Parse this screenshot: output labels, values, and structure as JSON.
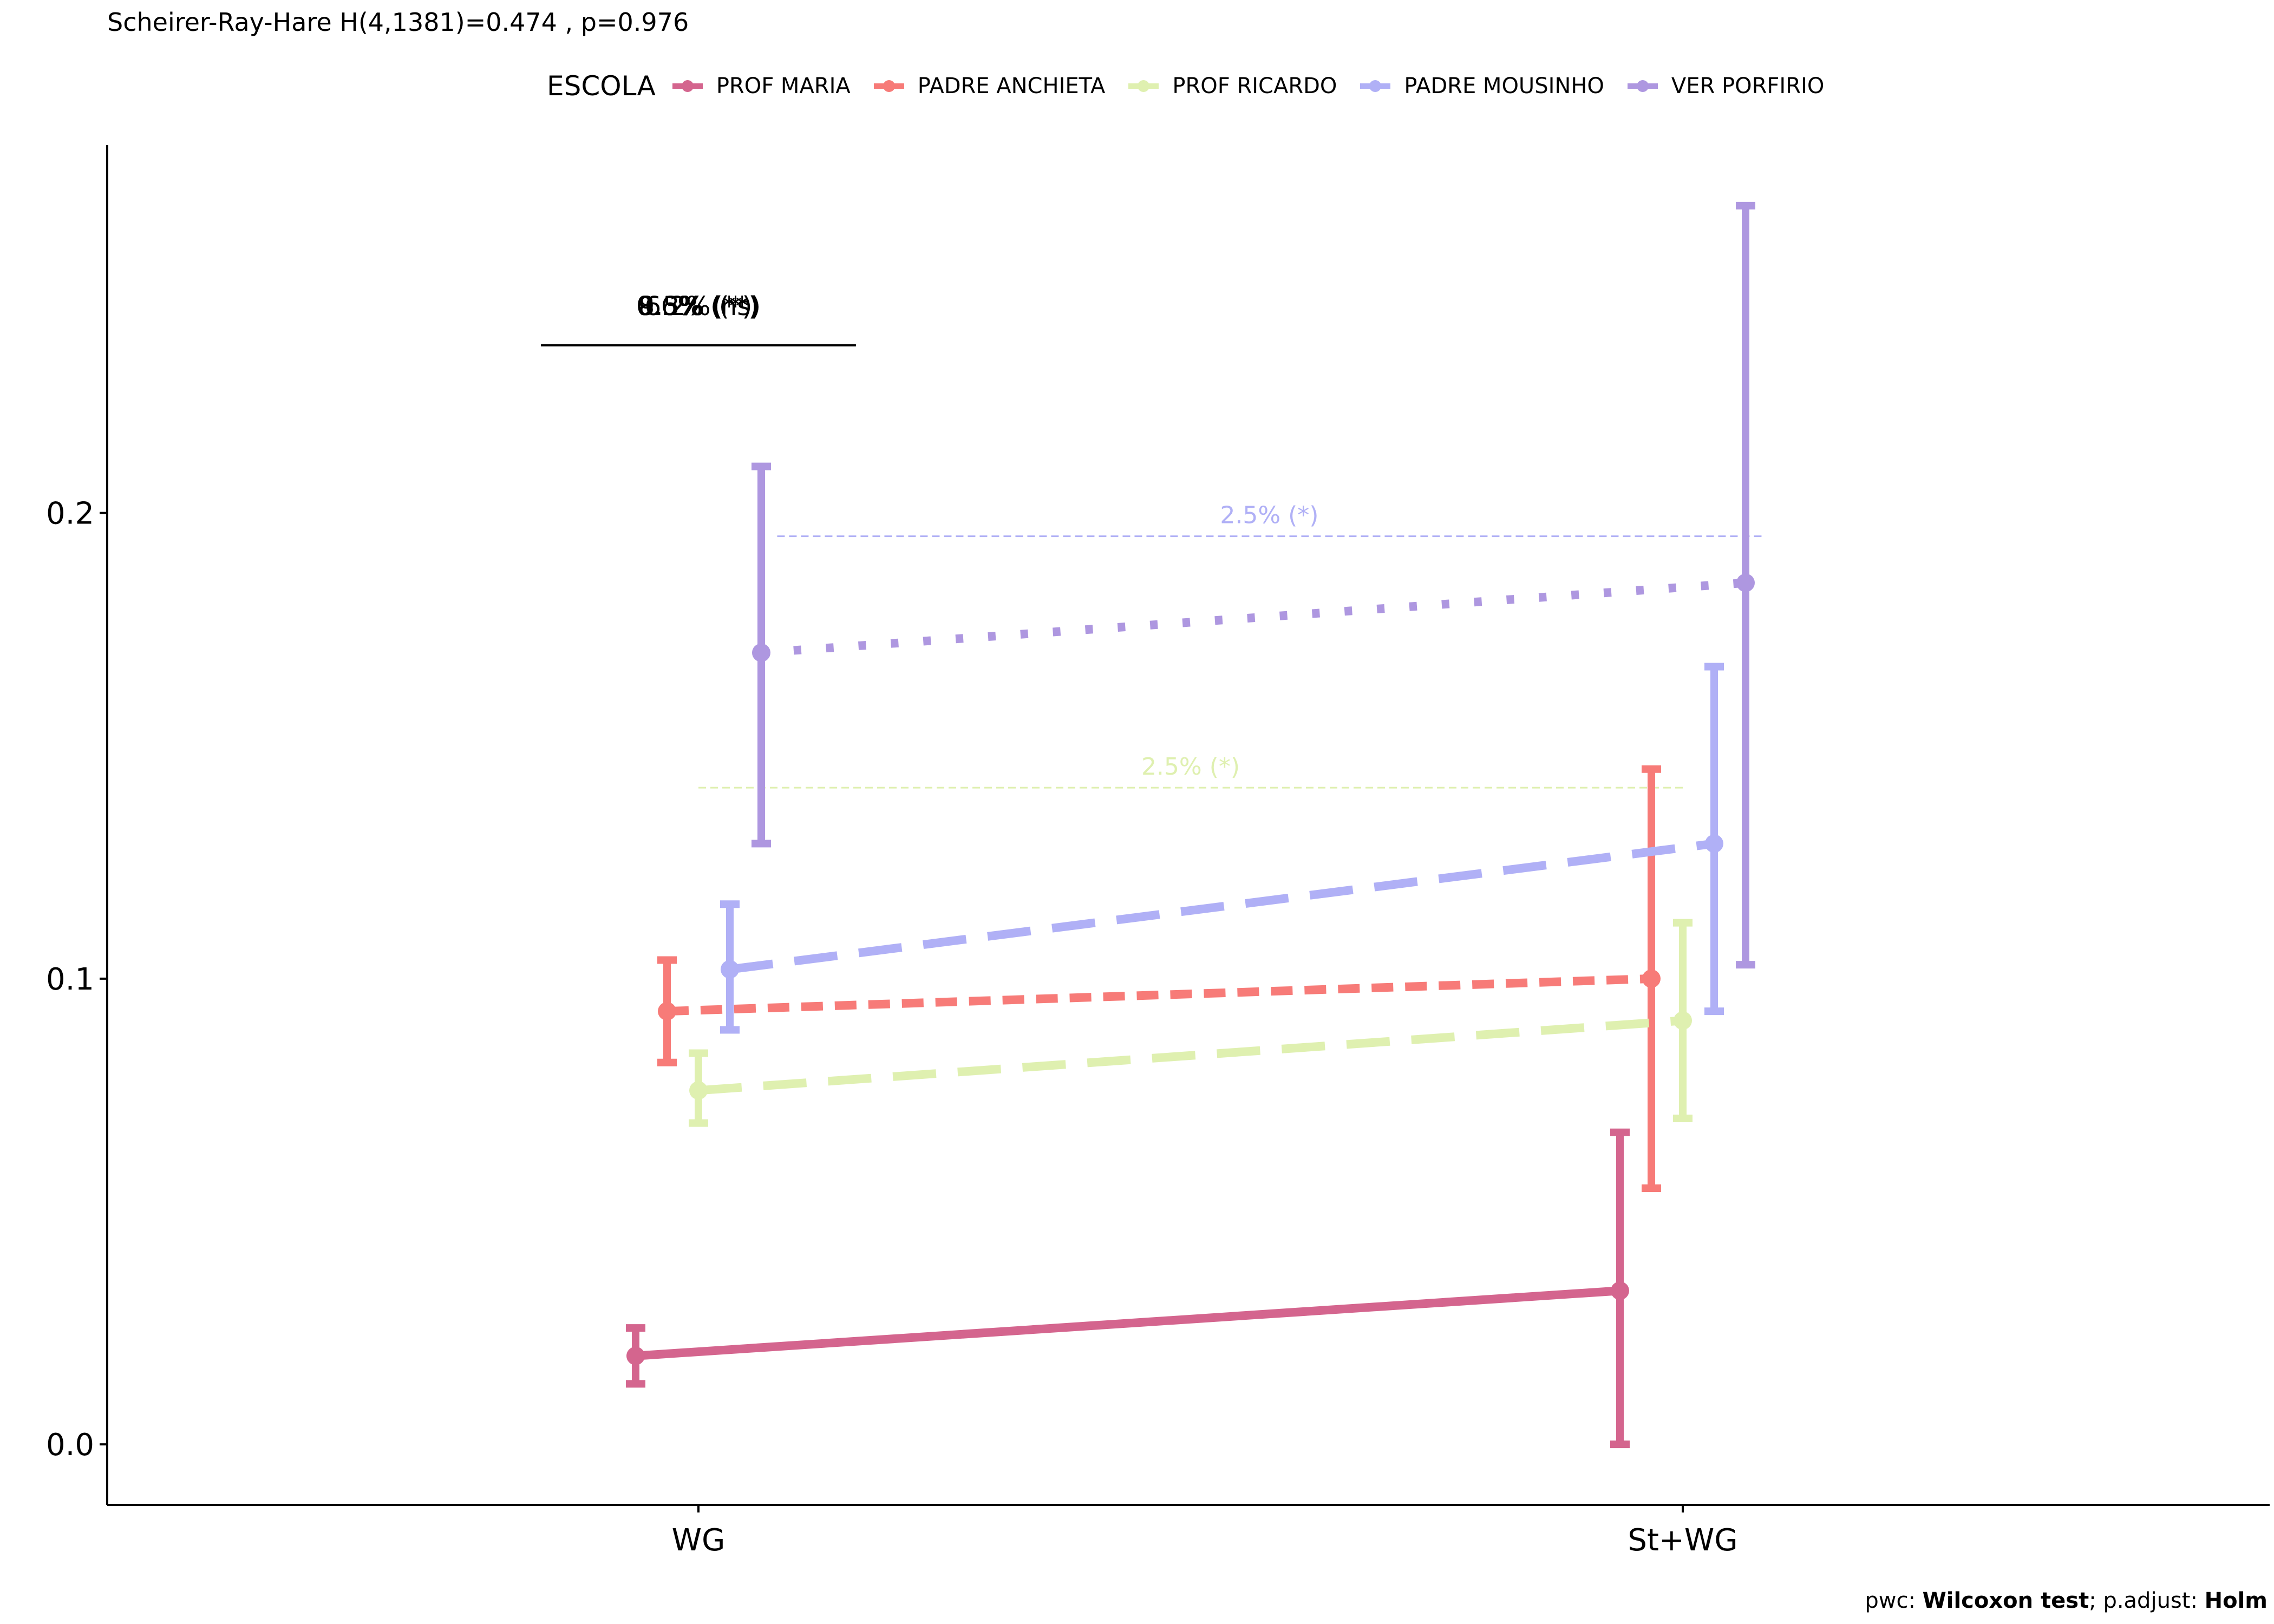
{
  "subtitle": "Scheirer-Ray-Hare H(4,1381)=0.474 , p=0.976",
  "caption": {
    "pwc_label": "pwc: ",
    "pwc_method": "Wilcoxon test",
    "sep": "; p.adjust: ",
    "adjust_method": "Holm"
  },
  "legend": {
    "title": "ESCOLA",
    "items": [
      {
        "label": "PROF MARIA",
        "color": "#d4658e"
      },
      {
        "label": "PADRE ANCHIETA",
        "color": "#f77b78"
      },
      {
        "label": "PROF RICARDO",
        "color": "#dff0b0"
      },
      {
        "label": "PADRE MOUSINHO",
        "color": "#b0b0f6"
      },
      {
        "label": "VER PORFIRIO",
        "color": "#ae97e0"
      }
    ]
  },
  "chart_data": {
    "type": "line",
    "categories": [
      "WG",
      "St+WG"
    ],
    "ylim": [
      -0.013,
      0.279
    ],
    "yticks": [
      0.0,
      0.1,
      0.2
    ],
    "ytick_labels": [
      "0.0",
      "0.1",
      "0.2"
    ],
    "xlabel": "",
    "ylabel": "",
    "grid": false,
    "legend_position": "top",
    "series": [
      {
        "name": "PROF MARIA",
        "color": "#d4658e",
        "dash": "solid",
        "values": [
          0.019,
          0.033
        ],
        "lower": [
          0.013,
          0.0
        ],
        "upper": [
          0.025,
          0.067
        ]
      },
      {
        "name": "PADRE ANCHIETA",
        "color": "#f77b78",
        "dash": "dashed-short",
        "values": [
          0.093,
          0.1
        ],
        "lower": [
          0.082,
          0.055
        ],
        "upper": [
          0.104,
          0.145
        ]
      },
      {
        "name": "PROF RICARDO",
        "color": "#dff0b0",
        "dash": "dashed-long",
        "values": [
          0.076,
          0.091
        ],
        "lower": [
          0.069,
          0.07
        ],
        "upper": [
          0.084,
          0.112
        ]
      },
      {
        "name": "PADRE MOUSINHO",
        "color": "#b0b0f6",
        "dash": "dashed-long",
        "values": [
          0.102,
          0.129
        ],
        "lower": [
          0.089,
          0.093
        ],
        "upper": [
          0.116,
          0.167
        ]
      },
      {
        "name": "VER PORFIRIO",
        "color": "#ae97e0",
        "dash": "dotted",
        "values": [
          0.17,
          0.185
        ],
        "lower": [
          0.129,
          0.103
        ],
        "upper": [
          0.21,
          0.266
        ]
      }
    ],
    "annotations": [
      {
        "text": "2.5% (*)",
        "series": "PADRE MOUSINHO",
        "color": "#b0b0f6",
        "y": 0.195,
        "x_from": 0.08,
        "x_to": 1.08
      },
      {
        "text": "2.5% (*)",
        "series": "PROF RICARDO",
        "color": "#dff0b0",
        "y": 0.141,
        "x_from": 0.0,
        "x_to": 1.0
      }
    ],
    "bracket": {
      "y": 0.236,
      "x_from": -0.16,
      "x_to": 0.16,
      "labels": [
        "9.5% (**)",
        "6.2% (*)",
        "8.3% (**)",
        "0.6% (ns)"
      ]
    }
  }
}
